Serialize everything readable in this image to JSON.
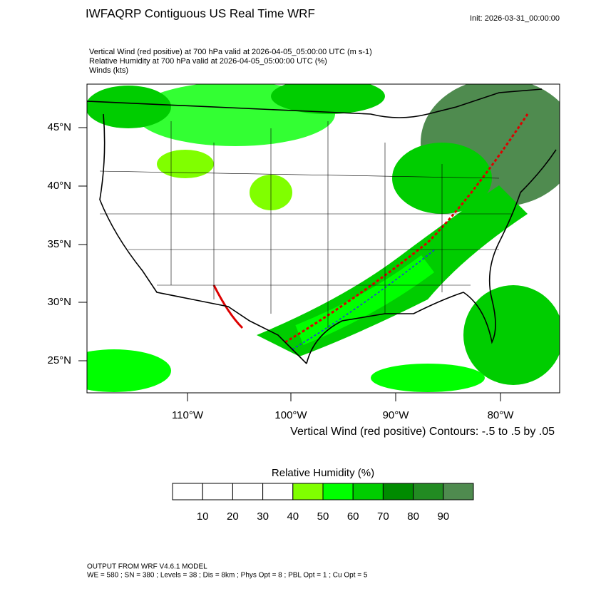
{
  "header": {
    "title": "IWFAQRP Contiguous US Real Time WRF",
    "init": "Init: 2026-03-31_00:00:00",
    "lines": [
      "Vertical Wind (red positive) at 700 hPa valid at 2026-04-05_05:00:00 UTC   (m s-1)",
      "Relative Humidity at 700 hPa valid at 2026-04-05_05:00:00 UTC   (%)",
      "Winds   (kts)"
    ]
  },
  "map": {
    "lat_labels": [
      "45°N",
      "40°N",
      "35°N",
      "30°N",
      "25°N"
    ],
    "lon_labels": [
      "110°W",
      "100°W",
      "90°W",
      "80°W"
    ],
    "contour_note": "Vertical Wind (red positive) Contours: -.5 to .5 by .05"
  },
  "colorbar": {
    "title": "Relative Humidity  (%)",
    "colors": [
      "#ffffff",
      "#ffffff",
      "#ffffff",
      "#ffffff",
      "#80ff00",
      "#00ff00",
      "#00cd00",
      "#008b00",
      "#228b22",
      "#4f8b4f"
    ],
    "ticks": [
      10,
      20,
      30,
      40,
      50,
      60,
      70,
      80,
      90
    ]
  },
  "footer": [
    "OUTPUT FROM WRF V4.6.1 MODEL",
    "WE = 580 ; SN = 380 ; Levels = 38 ; Dis = 8km ; Phys Opt = 8 ; PBL Opt = 1 ; Cu Opt = 5"
  ]
}
